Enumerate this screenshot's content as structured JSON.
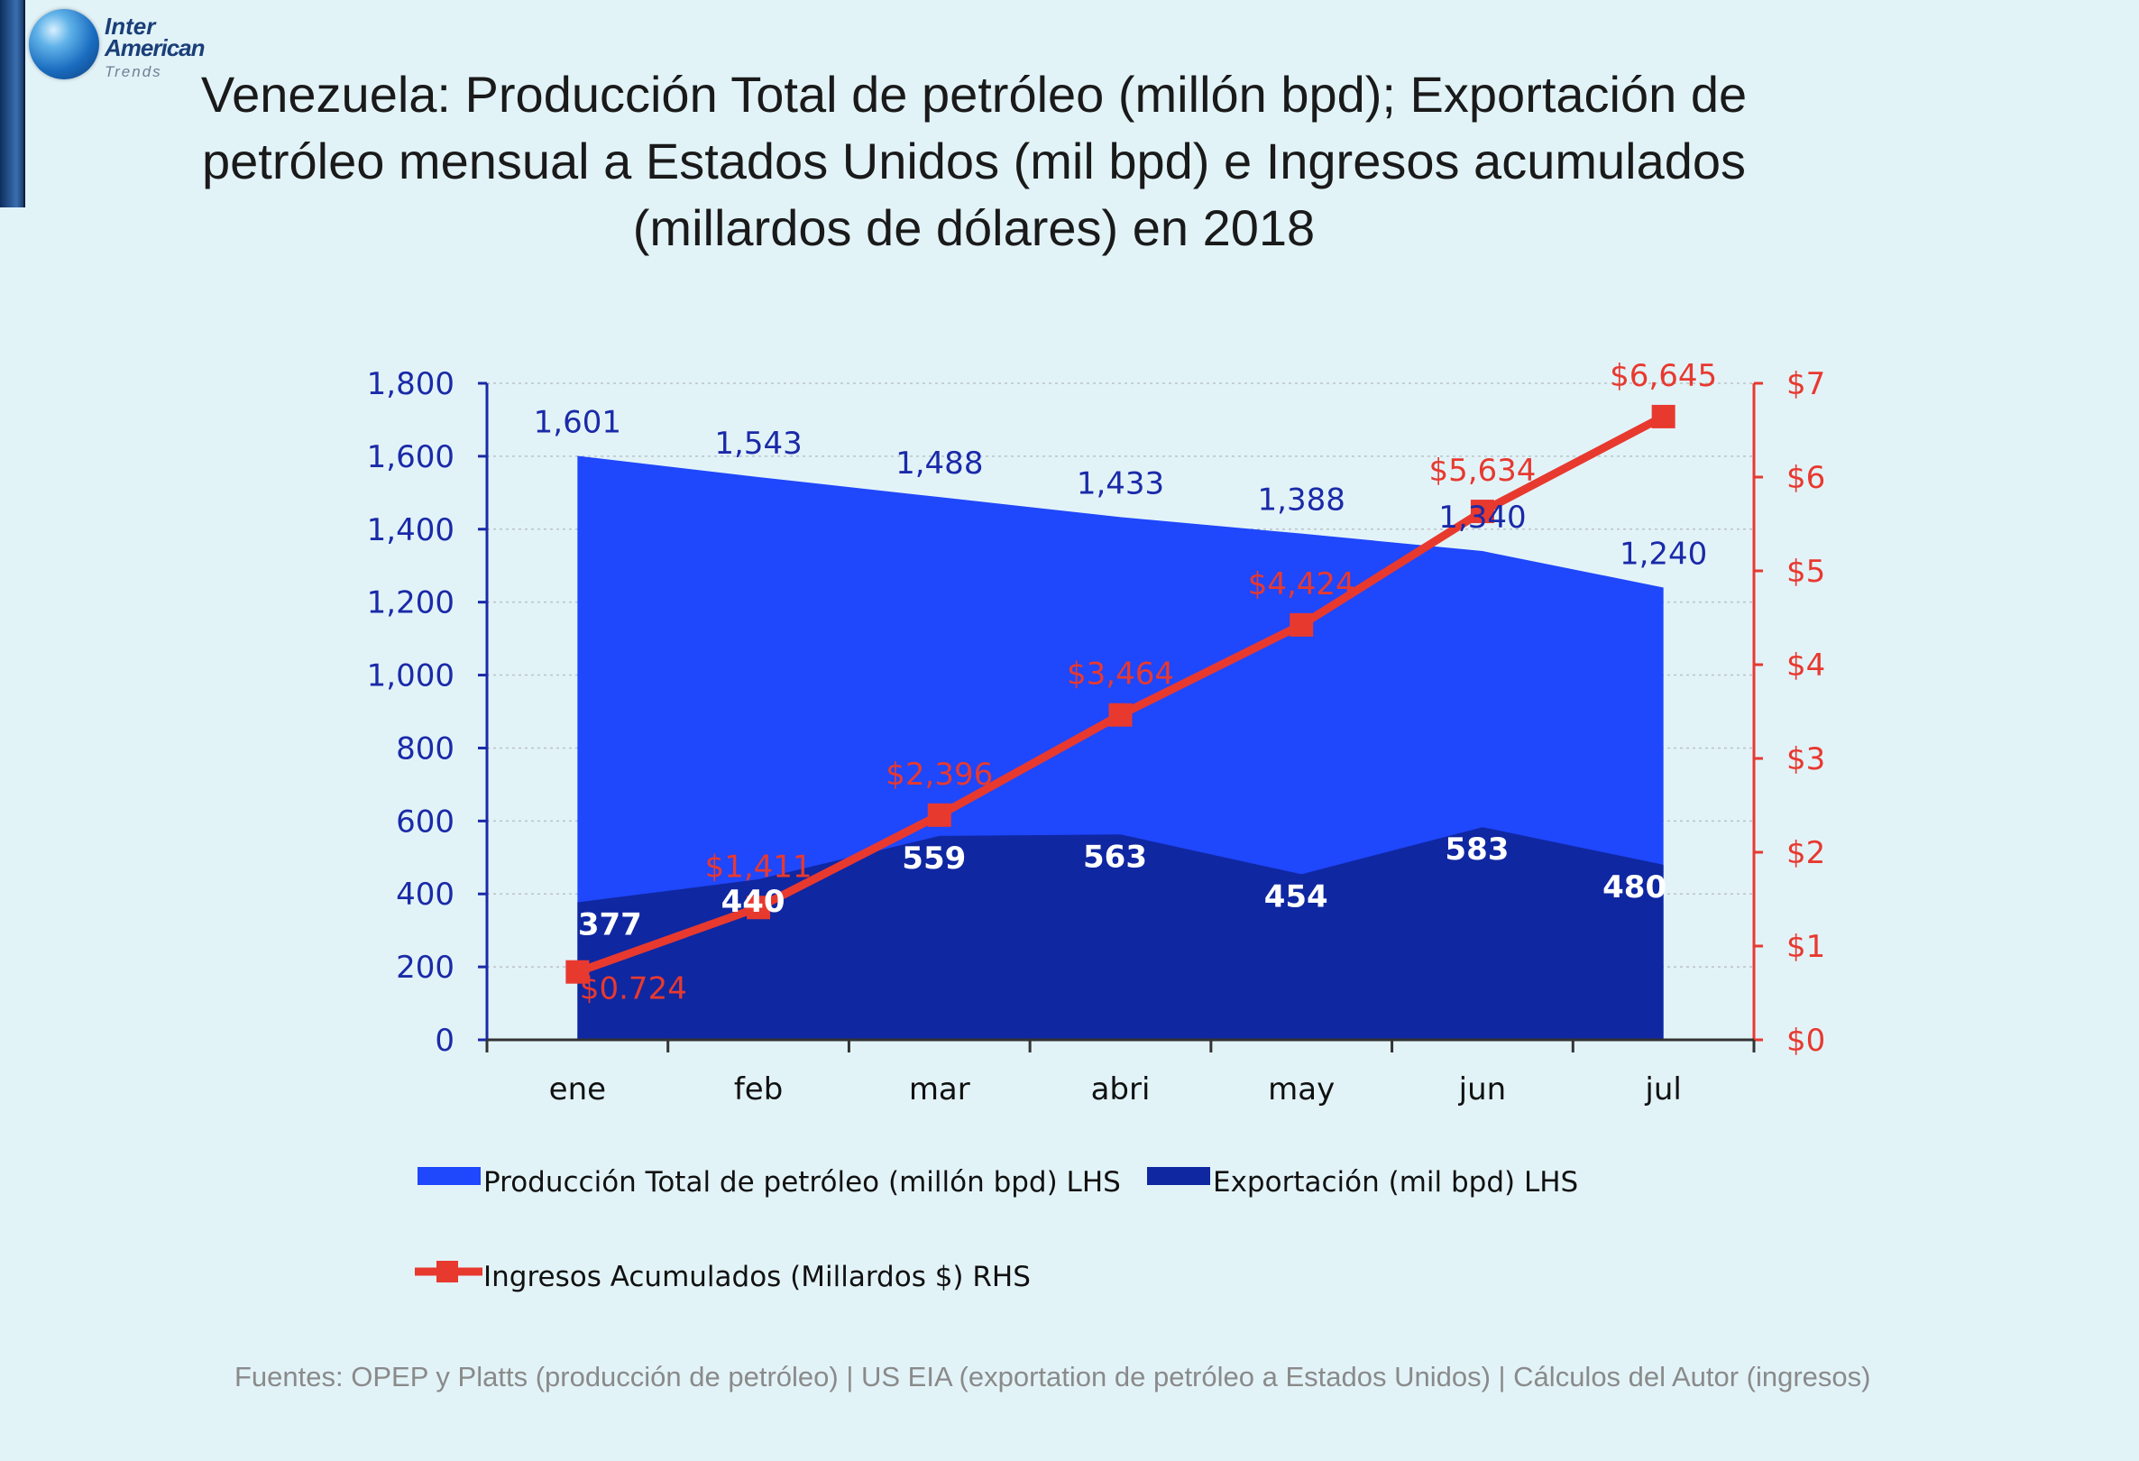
{
  "logo": {
    "line1": "Inter",
    "line2": "American",
    "line3": "Trends"
  },
  "title": "Venezuela: Producción Total de petróleo (millón bpd); Exportación de petróleo mensual a Estados Unidos (mil bpd) e Ingresos acumulados (millardos de dólares) en 2018",
  "source": "Fuentes: OPEP y Platts (producción de petróleo) | US EIA (exportation de petróleo a Estados Unidos) | Cálculos del Autor (ingresos)",
  "colors": {
    "production": "#1f47fb",
    "exports": "#0f27a1",
    "revenue": "#e8392f",
    "left_axis": "#1a2aa8",
    "right_axis": "#e8392f",
    "grid": "#b9c3c8"
  },
  "chart_data": {
    "type": "area",
    "categories": [
      "ene",
      "feb",
      "mar",
      "abri",
      "may",
      "jun",
      "jul"
    ],
    "y_left": {
      "min": 0,
      "max": 1800,
      "step": 200,
      "ticks": [
        "0",
        "200",
        "400",
        "600",
        "800",
        "1,000",
        "1,200",
        "1,400",
        "1,600",
        "1,800"
      ]
    },
    "y_right": {
      "min": 0,
      "max": 7,
      "step": 1,
      "ticks": [
        "$0",
        "$1",
        "$2",
        "$3",
        "$4",
        "$5",
        "$6",
        "$7"
      ]
    },
    "grid": true,
    "legend_position": "bottom",
    "series": [
      {
        "name": "Producción Total de petróleo (millón bpd) LHS",
        "type": "area",
        "axis": "left",
        "values": [
          1601,
          1543,
          1488,
          1433,
          1388,
          1340,
          1240
        ],
        "labels": [
          "1,601",
          "1,543",
          "1,488",
          "1,433",
          "1,388",
          "1,340",
          "1,240"
        ]
      },
      {
        "name": "Exportación (mil bpd) LHS",
        "type": "area",
        "axis": "left",
        "values": [
          377,
          440,
          559,
          563,
          454,
          583,
          480
        ],
        "labels": [
          "377",
          "440",
          "559",
          "563",
          "454",
          "583",
          "480"
        ]
      },
      {
        "name": "Ingresos Acumulados (Millardos $) RHS",
        "type": "line",
        "axis": "right",
        "values": [
          0.724,
          1.411,
          2.396,
          3.464,
          4.424,
          5.634,
          6.645
        ],
        "labels": [
          "$0.724",
          "$1,411",
          "$2,396",
          "$3,464",
          "$4,424",
          "$5,634",
          "$6,645"
        ]
      }
    ]
  }
}
